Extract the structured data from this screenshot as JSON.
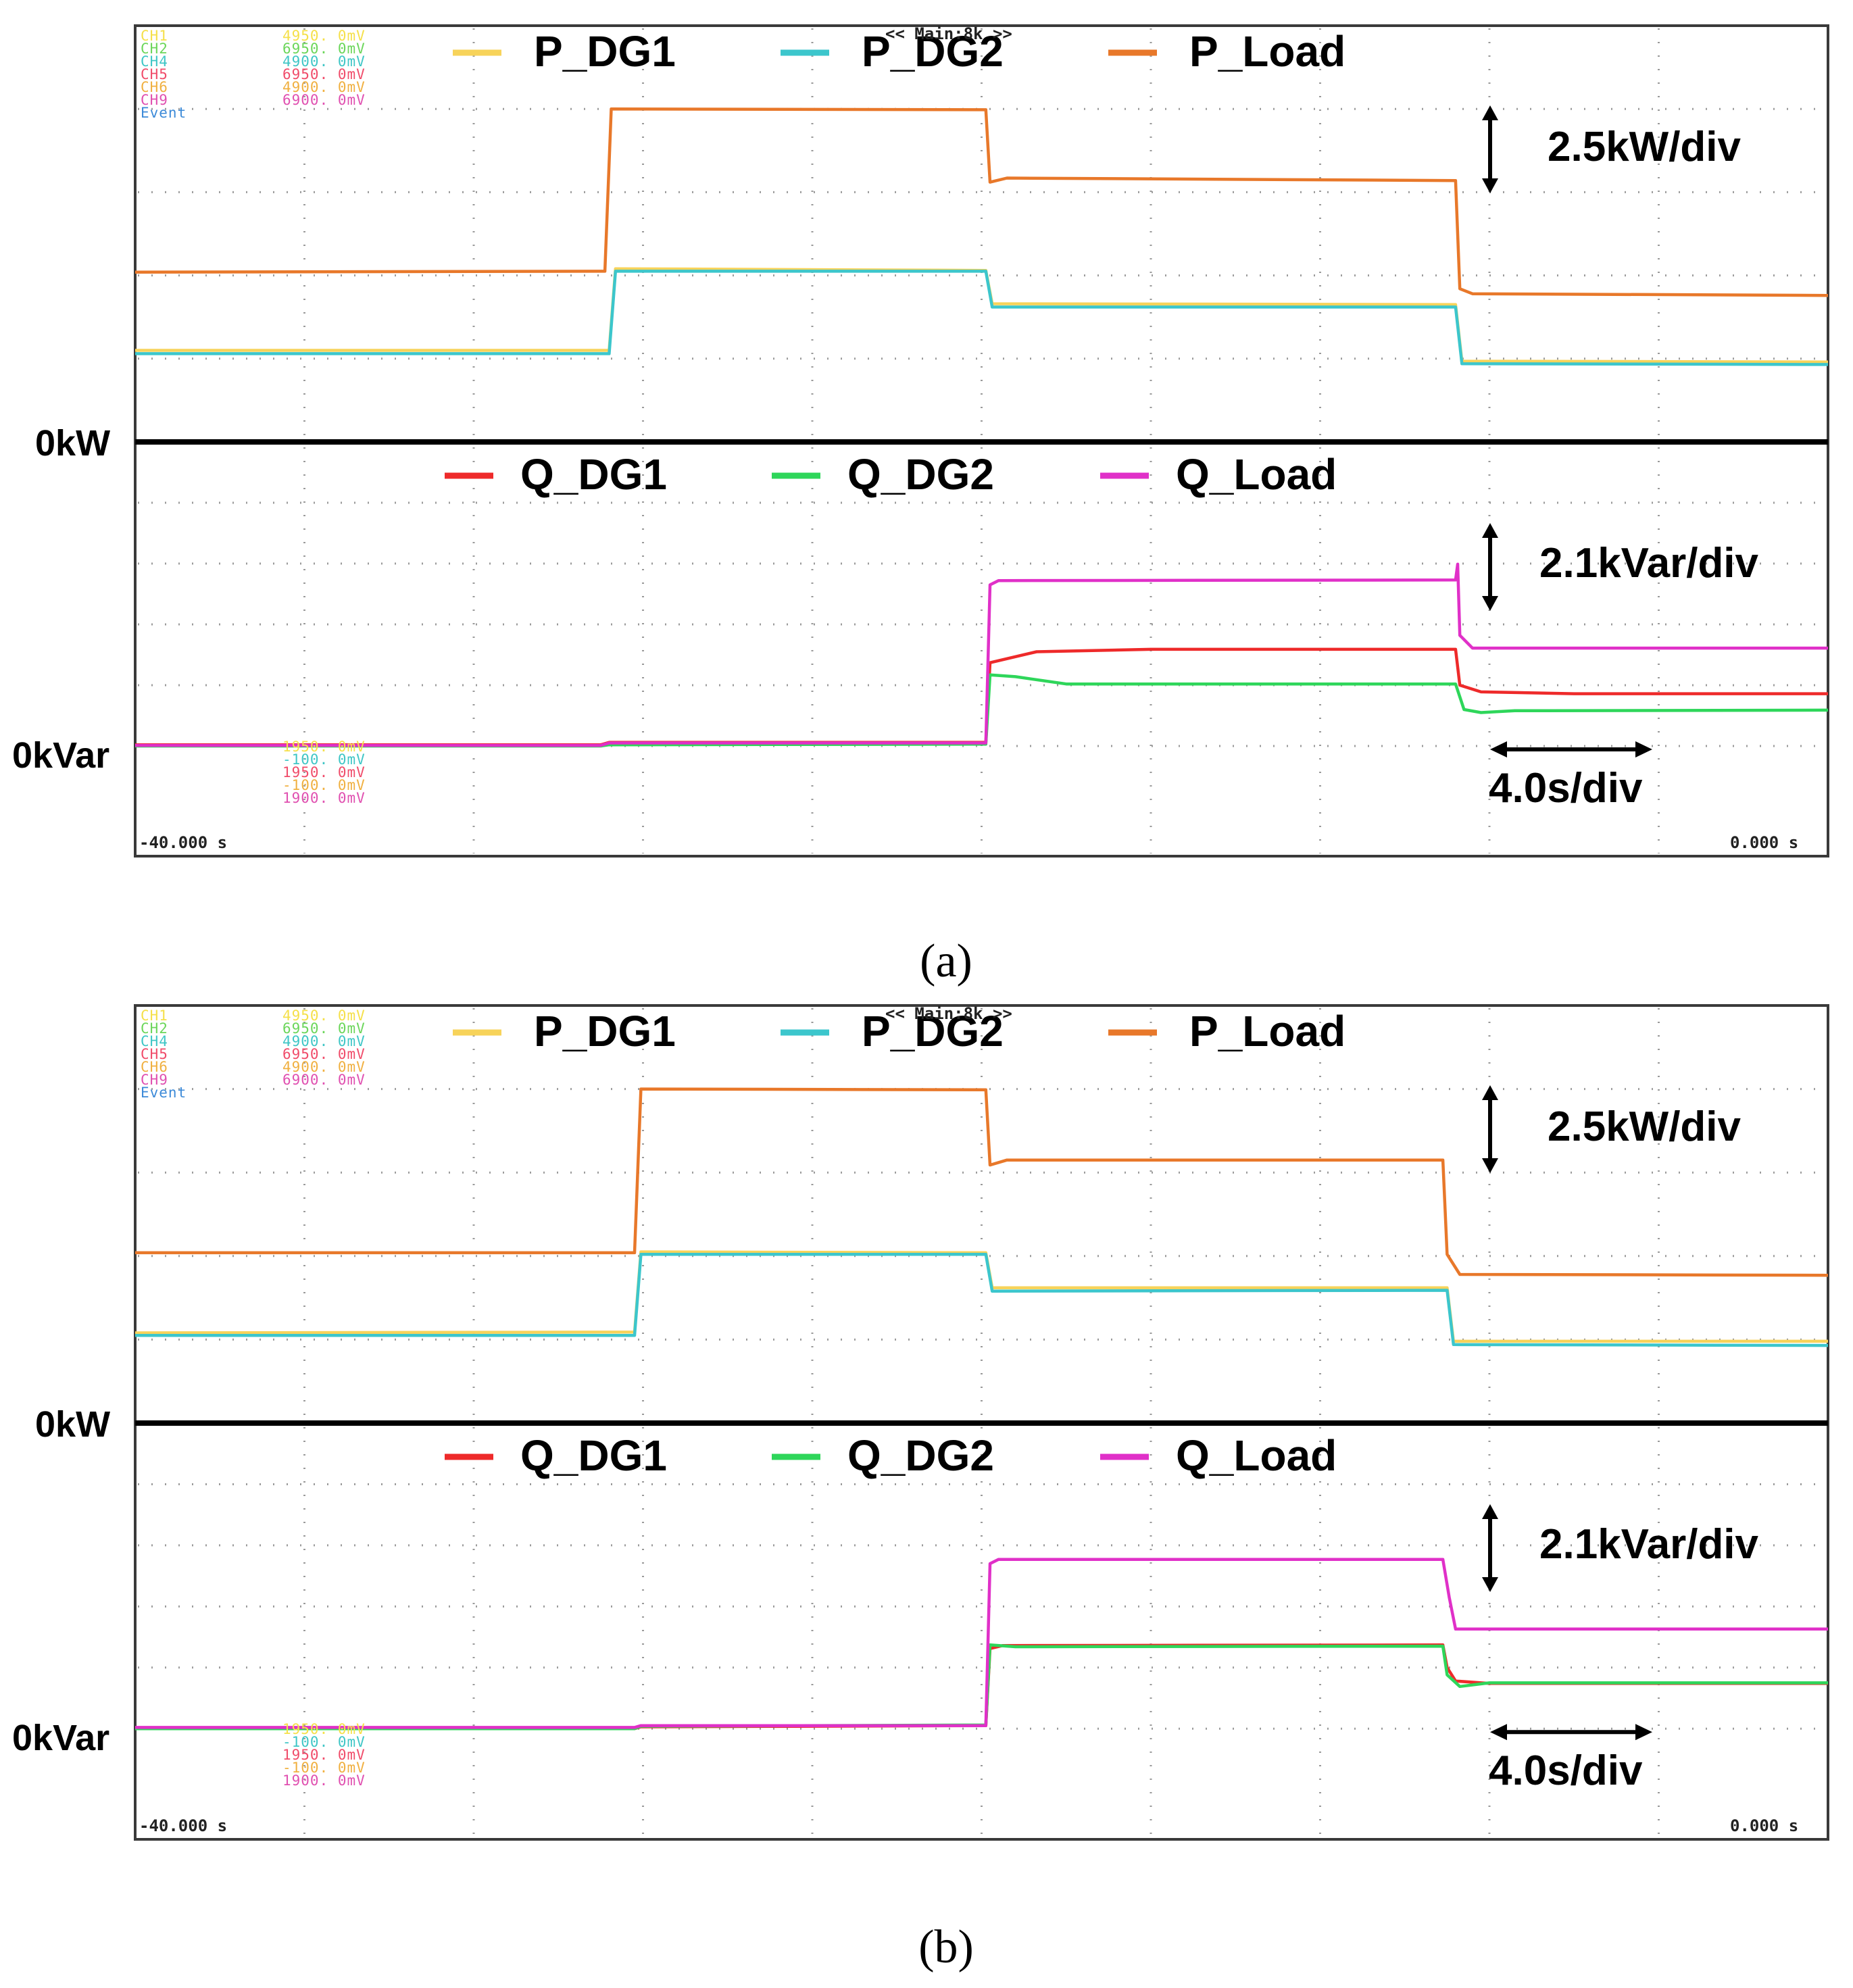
{
  "chart_data": [
    {
      "type": "line",
      "panel": "a",
      "caption": "(a)",
      "x_start_label": "-40.000 s",
      "x_end_label": "0.000 s",
      "header_label": "<< Main:8k >>",
      "time_scale_label": "4.0s/div",
      "channel_labels": [
        {
          "text": "CH1",
          "color": "#f5e04a"
        },
        {
          "text": "CH2",
          "color": "#6cd65a"
        },
        {
          "text": "CH4",
          "color": "#3fc6c6"
        },
        {
          "text": "CH5",
          "color": "#f04c6a"
        },
        {
          "text": "CH6",
          "color": "#f0b040"
        },
        {
          "text": "CH9",
          "color": "#e050b0"
        },
        {
          "text": "Event",
          "color": "#3c8ad8"
        }
      ],
      "offset_labels_top": [
        {
          "text": "4950. 0mV",
          "color": "#f5e04a"
        },
        {
          "text": "6950. 0mV",
          "color": "#6cd65a"
        },
        {
          "text": "4900. 0mV",
          "color": "#3fc6c6"
        },
        {
          "text": "6950. 0mV",
          "color": "#f04c6a"
        },
        {
          "text": "4900. 0mV",
          "color": "#f0b040"
        },
        {
          "text": "6900. 0mV",
          "color": "#e050b0"
        }
      ],
      "offset_labels_bottom": [
        {
          "text": "1950. 0mV",
          "color": "#f5e04a"
        },
        {
          "text": "-100. 0mV",
          "color": "#3fc6c6"
        },
        {
          "text": "1950. 0mV",
          "color": "#f04c6a"
        },
        {
          "text": "-100. 0mV",
          "color": "#f0b040"
        },
        {
          "text": "1900. 0mV",
          "color": "#e050b0"
        }
      ],
      "x_range": [
        -40,
        0
      ],
      "active_power": {
        "zero_label": "0kW",
        "scale_label": "2.5kW/div",
        "y_range_div": [
          0,
          4
        ],
        "series": [
          {
            "name": "P_DG1",
            "color": "#f7d35a",
            "points": [
              [
                -40,
                1.1
              ],
              [
                -28.8,
                1.1
              ],
              [
                -28.65,
                2.08
              ],
              [
                -19.9,
                2.06
              ],
              [
                -19.75,
                1.66
              ],
              [
                -8.8,
                1.65
              ],
              [
                -8.65,
                0.97
              ],
              [
                0,
                0.96
              ]
            ]
          },
          {
            "name": "P_DG2",
            "color": "#3cc6cc",
            "points": [
              [
                -40,
                1.06
              ],
              [
                -28.8,
                1.06
              ],
              [
                -28.65,
                2.05
              ],
              [
                -19.9,
                2.05
              ],
              [
                -19.75,
                1.62
              ],
              [
                -8.8,
                1.62
              ],
              [
                -8.65,
                0.94
              ],
              [
                0,
                0.93
              ]
            ]
          },
          {
            "name": "P_Load",
            "color": "#e8782a",
            "points": [
              [
                -40,
                2.04
              ],
              [
                -28.9,
                2.05
              ],
              [
                -28.75,
                4.0
              ],
              [
                -19.9,
                3.99
              ],
              [
                -19.8,
                3.12
              ],
              [
                -19.4,
                3.17
              ],
              [
                -8.8,
                3.14
              ],
              [
                -8.7,
                1.84
              ],
              [
                -8.4,
                1.78
              ],
              [
                0,
                1.76
              ]
            ]
          }
        ]
      },
      "reactive_power": {
        "zero_label": "0kVar",
        "scale_label": "2.1kVar/div",
        "y_range_div": [
          0,
          4
        ],
        "series": [
          {
            "name": "Q_DG1",
            "color": "#ee2a2a",
            "points": [
              [
                -40,
                0.02
              ],
              [
                -29,
                0.02
              ],
              [
                -28.8,
                0.06
              ],
              [
                -19.9,
                0.06
              ],
              [
                -19.8,
                1.37
              ],
              [
                -18.7,
                1.55
              ],
              [
                -16,
                1.59
              ],
              [
                -8.8,
                1.59
              ],
              [
                -8.7,
                1.0
              ],
              [
                -8.2,
                0.89
              ],
              [
                -6,
                0.86
              ],
              [
                0,
                0.86
              ]
            ]
          },
          {
            "name": "Q_DG2",
            "color": "#2ed65a",
            "points": [
              [
                -40,
                0.0
              ],
              [
                -29,
                0.0
              ],
              [
                -28.8,
                0.02
              ],
              [
                -19.9,
                0.03
              ],
              [
                -19.8,
                1.17
              ],
              [
                -19.2,
                1.14
              ],
              [
                -18,
                1.02
              ],
              [
                -8.8,
                1.02
              ],
              [
                -8.6,
                0.6
              ],
              [
                -8.2,
                0.55
              ],
              [
                -7.4,
                0.58
              ],
              [
                0,
                0.59
              ]
            ]
          },
          {
            "name": "Q_Load",
            "color": "#e030c8",
            "points": [
              [
                -40,
                0.01
              ],
              [
                -29,
                0.01
              ],
              [
                -28.8,
                0.05
              ],
              [
                -19.9,
                0.05
              ],
              [
                -19.8,
                2.65
              ],
              [
                -19.6,
                2.72
              ],
              [
                -8.8,
                2.73
              ],
              [
                -8.75,
                2.99
              ],
              [
                -8.7,
                1.82
              ],
              [
                -8.4,
                1.61
              ],
              [
                0,
                1.61
              ]
            ]
          }
        ]
      }
    },
    {
      "type": "line",
      "panel": "b",
      "caption": "(b)",
      "x_start_label": "-40.000 s",
      "x_end_label": "0.000 s",
      "header_label": "<< Main:8k >>",
      "time_scale_label": "4.0s/div",
      "channel_labels": [
        {
          "text": "CH1",
          "color": "#f5e04a"
        },
        {
          "text": "CH2",
          "color": "#6cd65a"
        },
        {
          "text": "CH4",
          "color": "#3fc6c6"
        },
        {
          "text": "CH5",
          "color": "#f04c6a"
        },
        {
          "text": "CH6",
          "color": "#f0b040"
        },
        {
          "text": "CH9",
          "color": "#e050b0"
        },
        {
          "text": "Event",
          "color": "#3c8ad8"
        }
      ],
      "offset_labels_top": [
        {
          "text": "4950. 0mV",
          "color": "#f5e04a"
        },
        {
          "text": "6950. 0mV",
          "color": "#6cd65a"
        },
        {
          "text": "4900. 0mV",
          "color": "#3fc6c6"
        },
        {
          "text": "6950. 0mV",
          "color": "#f04c6a"
        },
        {
          "text": "4900. 0mV",
          "color": "#f0b040"
        },
        {
          "text": "6900. 0mV",
          "color": "#e050b0"
        }
      ],
      "offset_labels_bottom": [
        {
          "text": "1950. 0mV",
          "color": "#f5e04a"
        },
        {
          "text": "-100. 0mV",
          "color": "#3fc6c6"
        },
        {
          "text": "1950. 0mV",
          "color": "#f04c6a"
        },
        {
          "text": "-100. 0mV",
          "color": "#f0b040"
        },
        {
          "text": "1900. 0mV",
          "color": "#e050b0"
        }
      ],
      "x_range": [
        -40,
        0
      ],
      "active_power": {
        "zero_label": "0kW",
        "scale_label": "2.5kW/div",
        "y_range_div": [
          0,
          4
        ],
        "series": [
          {
            "name": "P_DG1",
            "color": "#f7d35a",
            "points": [
              [
                -40,
                1.08
              ],
              [
                -28.2,
                1.09
              ],
              [
                -28.05,
                2.05
              ],
              [
                -19.9,
                2.04
              ],
              [
                -19.75,
                1.62
              ],
              [
                -9,
                1.62
              ],
              [
                -8.85,
                0.98
              ],
              [
                0,
                0.98
              ]
            ]
          },
          {
            "name": "P_DG2",
            "color": "#3cc6cc",
            "points": [
              [
                -40,
                1.05
              ],
              [
                -28.2,
                1.05
              ],
              [
                -28.05,
                2.02
              ],
              [
                -19.9,
                2.02
              ],
              [
                -19.75,
                1.58
              ],
              [
                -9,
                1.59
              ],
              [
                -8.85,
                0.94
              ],
              [
                0,
                0.93
              ]
            ]
          },
          {
            "name": "P_Load",
            "color": "#e8782a",
            "points": [
              [
                -40,
                2.04
              ],
              [
                -28.2,
                2.04
              ],
              [
                -28.05,
                4.0
              ],
              [
                -19.9,
                3.99
              ],
              [
                -19.8,
                3.09
              ],
              [
                -19.4,
                3.15
              ],
              [
                -9.1,
                3.15
              ],
              [
                -9.0,
                2.02
              ],
              [
                -8.7,
                1.78
              ],
              [
                0,
                1.77
              ]
            ]
          }
        ]
      },
      "reactive_power": {
        "zero_label": "0kVar",
        "scale_label": "2.1kVar/div",
        "y_range_div": [
          0,
          4
        ],
        "series": [
          {
            "name": "Q_DG1",
            "color": "#ee2a2a",
            "points": [
              [
                -40,
                0.0
              ],
              [
                -28.2,
                0.0
              ],
              [
                -28.05,
                0.03
              ],
              [
                -19.9,
                0.05
              ],
              [
                -19.8,
                1.31
              ],
              [
                -19.5,
                1.36
              ],
              [
                -9.1,
                1.37
              ],
              [
                -9.0,
                1.0
              ],
              [
                -8.8,
                0.78
              ],
              [
                -8,
                0.74
              ],
              [
                0,
                0.74
              ]
            ]
          },
          {
            "name": "Q_DG2",
            "color": "#2ed65a",
            "points": [
              [
                -40,
                0.0
              ],
              [
                -28.2,
                0.0
              ],
              [
                -28.05,
                0.04
              ],
              [
                -19.9,
                0.06
              ],
              [
                -19.8,
                1.37
              ],
              [
                -19.2,
                1.34
              ],
              [
                -9.1,
                1.35
              ],
              [
                -9.0,
                0.88
              ],
              [
                -8.7,
                0.69
              ],
              [
                -8,
                0.75
              ],
              [
                0,
                0.75
              ]
            ]
          },
          {
            "name": "Q_Load",
            "color": "#e030c8",
            "points": [
              [
                -40,
                0.02
              ],
              [
                -28.2,
                0.02
              ],
              [
                -28.05,
                0.05
              ],
              [
                -19.9,
                0.05
              ],
              [
                -19.8,
                2.7
              ],
              [
                -19.6,
                2.77
              ],
              [
                -9.1,
                2.77
              ],
              [
                -8.95,
                2.15
              ],
              [
                -8.8,
                1.63
              ],
              [
                0,
                1.63
              ]
            ]
          }
        ]
      }
    }
  ]
}
